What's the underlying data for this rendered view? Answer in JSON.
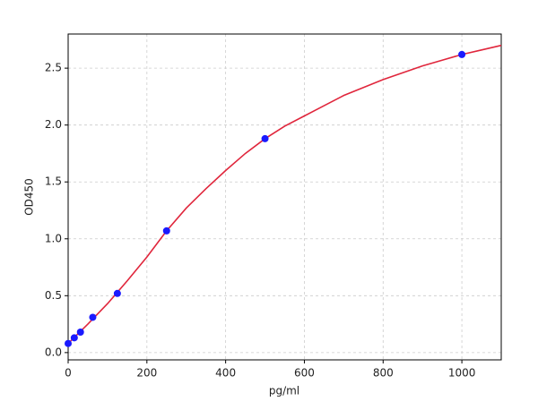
{
  "chart_data": {
    "type": "scatter",
    "x_label": "pg/ml",
    "y_label": "OD450",
    "xlim": [
      0,
      1100
    ],
    "ylim": [
      -0.064,
      2.8
    ],
    "xticks": [
      0,
      200,
      400,
      600,
      800,
      1000
    ],
    "yticks": [
      {
        "value": 0,
        "label": "0.0"
      },
      {
        "value": 0.5,
        "label": "0.5"
      },
      {
        "value": 1,
        "label": "1.0"
      },
      {
        "value": 1.5,
        "label": "1.5"
      },
      {
        "value": 2,
        "label": "2.0"
      },
      {
        "value": 2.5,
        "label": "2.5"
      }
    ],
    "grid": true,
    "series": [
      {
        "type": "scatter",
        "color": "#1a1aff",
        "x": [
          0,
          15.6,
          31.25,
          62.5,
          125,
          250,
          500,
          1000
        ],
        "values": [
          0.08,
          0.13,
          0.18,
          0.31,
          0.52,
          1.07,
          1.88,
          2.62
        ]
      },
      {
        "type": "line",
        "color": "#e0263c",
        "x": [
          0,
          50,
          100,
          150,
          200,
          250,
          300,
          350,
          400,
          450,
          500,
          550,
          600,
          650,
          700,
          750,
          800,
          850,
          900,
          950,
          1000,
          1050,
          1100
        ],
        "values": [
          0.08,
          0.25,
          0.43,
          0.63,
          0.84,
          1.07,
          1.27,
          1.44,
          1.6,
          1.75,
          1.88,
          1.99,
          2.08,
          2.17,
          2.26,
          2.33,
          2.4,
          2.46,
          2.52,
          2.57,
          2.62,
          2.66,
          2.7
        ]
      }
    ]
  }
}
